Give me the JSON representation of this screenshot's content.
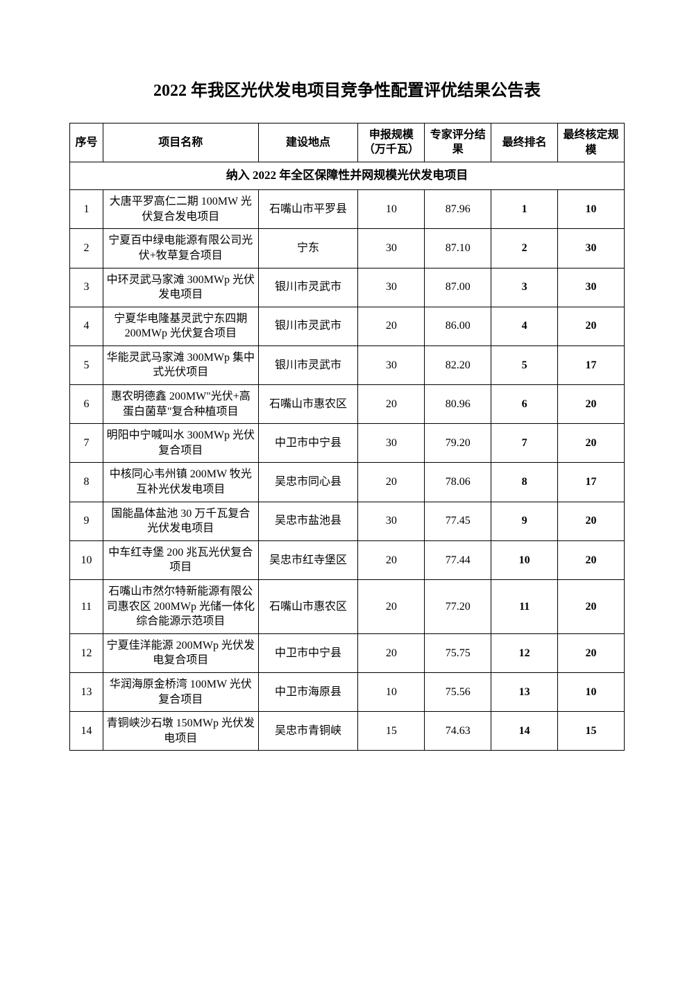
{
  "title": "2022 年我区光伏发电项目竞争性配置评优结果公告表",
  "columns": {
    "seq": "序号",
    "name": "项目名称",
    "loc": "建设地点",
    "scale": "申报规模（万千瓦）",
    "score": "专家评分结果",
    "rank": "最终排名",
    "final": "最终核定规模"
  },
  "section_header": "纳入 2022 年全区保障性并网规模光伏发电项目",
  "rows": [
    {
      "seq": "1",
      "name": "大唐平罗高仁二期 100MW 光伏复合发电项目",
      "loc": "石嘴山市平罗县",
      "scale": "10",
      "score": "87.96",
      "rank": "1",
      "final": "10"
    },
    {
      "seq": "2",
      "name": "宁夏百中绿电能源有限公司光伏+牧草复合项目",
      "loc": "宁东",
      "scale": "30",
      "score": "87.10",
      "rank": "2",
      "final": "30"
    },
    {
      "seq": "3",
      "name": "中环灵武马家滩 300MWp 光伏发电项目",
      "loc": "银川市灵武市",
      "scale": "30",
      "score": "87.00",
      "rank": "3",
      "final": "30"
    },
    {
      "seq": "4",
      "name": "宁夏华电隆基灵武宁东四期 200MWp 光伏复合项目",
      "loc": "银川市灵武市",
      "scale": "20",
      "score": "86.00",
      "rank": "4",
      "final": "20"
    },
    {
      "seq": "5",
      "name": "华能灵武马家滩 300MWp 集中式光伏项目",
      "loc": "银川市灵武市",
      "scale": "30",
      "score": "82.20",
      "rank": "5",
      "final": "17"
    },
    {
      "seq": "6",
      "name": "惠农明德鑫 200MW\"光伏+高蛋白菌草\"复合种植项目",
      "loc": "石嘴山市惠农区",
      "scale": "20",
      "score": "80.96",
      "rank": "6",
      "final": "20"
    },
    {
      "seq": "7",
      "name": "明阳中宁喊叫水 300MWp 光伏复合项目",
      "loc": "中卫市中宁县",
      "scale": "30",
      "score": "79.20",
      "rank": "7",
      "final": "20"
    },
    {
      "seq": "8",
      "name": "中核同心韦州镇 200MW 牧光互补光伏发电项目",
      "loc": "吴忠市同心县",
      "scale": "20",
      "score": "78.06",
      "rank": "8",
      "final": "17"
    },
    {
      "seq": "9",
      "name": "国能晶体盐池 30 万千瓦复合光伏发电项目",
      "loc": "吴忠市盐池县",
      "scale": "30",
      "score": "77.45",
      "rank": "9",
      "final": "20"
    },
    {
      "seq": "10",
      "name": "中车红寺堡 200 兆瓦光伏复合项目",
      "loc": "吴忠市红寺堡区",
      "scale": "20",
      "score": "77.44",
      "rank": "10",
      "final": "20"
    },
    {
      "seq": "11",
      "name": "石嘴山市然尔特新能源有限公司惠农区 200MWp 光储一体化综合能源示范项目",
      "loc": "石嘴山市惠农区",
      "scale": "20",
      "score": "77.20",
      "rank": "11",
      "final": "20"
    },
    {
      "seq": "12",
      "name": "宁夏佳洋能源 200MWp 光伏发电复合项目",
      "loc": "中卫市中宁县",
      "scale": "20",
      "score": "75.75",
      "rank": "12",
      "final": "20"
    },
    {
      "seq": "13",
      "name": "华润海原金桥湾 100MW 光伏复合项目",
      "loc": "中卫市海原县",
      "scale": "10",
      "score": "75.56",
      "rank": "13",
      "final": "10"
    },
    {
      "seq": "14",
      "name": "青铜峡沙石墩 150MWp 光伏发电项目",
      "loc": "吴忠市青铜峡",
      "scale": "15",
      "score": "74.63",
      "rank": "14",
      "final": "15"
    }
  ],
  "styling": {
    "page_bg": "#ffffff",
    "text_color": "#000000",
    "border_color": "#000000",
    "title_fontsize": 24,
    "cell_fontsize": 16,
    "font_family": "SimSun"
  }
}
